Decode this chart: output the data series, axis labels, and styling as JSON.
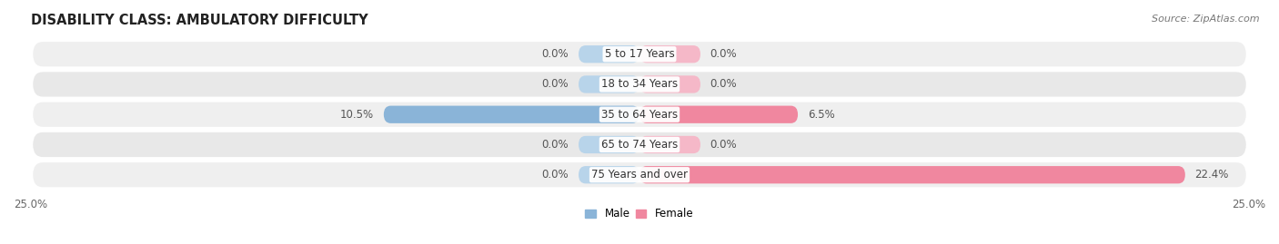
{
  "title": "DISABILITY CLASS: AMBULATORY DIFFICULTY",
  "source": "Source: ZipAtlas.com",
  "categories": [
    "5 to 17 Years",
    "18 to 34 Years",
    "35 to 64 Years",
    "65 to 74 Years",
    "75 Years and over"
  ],
  "male_values": [
    0.0,
    0.0,
    10.5,
    0.0,
    0.0
  ],
  "female_values": [
    0.0,
    0.0,
    6.5,
    0.0,
    22.4
  ],
  "x_max": 25.0,
  "male_color": "#8ab4d8",
  "female_color": "#f0879f",
  "male_color_light": "#b8d4ea",
  "female_color_light": "#f5b8c8",
  "male_label": "Male",
  "female_label": "Female",
  "row_bg_color": "#e8e8e8",
  "row_bg_color_alt": "#efefef",
  "title_fontsize": 10.5,
  "label_fontsize": 8.5,
  "tick_fontsize": 8.5,
  "source_fontsize": 8,
  "stub_size": 2.5
}
